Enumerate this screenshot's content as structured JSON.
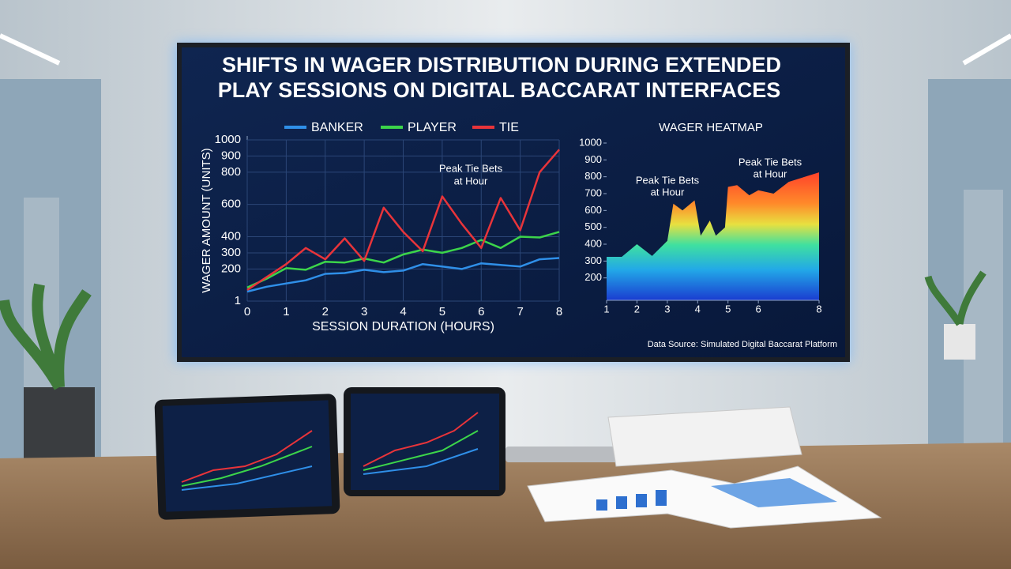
{
  "title": [
    "SHIFTS IN WAGER DISTRIBUTION DURING EXTENDED",
    "PLAY SESSIONS ON DIGITAL BACCARAT INTERFACES"
  ],
  "source": "Data Source: Simulated Digital Baccarat Platform",
  "chart_data": [
    {
      "type": "line",
      "x": [
        0,
        0.5,
        1,
        1.5,
        2,
        2.5,
        3,
        3.5,
        4,
        4.5,
        5,
        5.5,
        6,
        6.5,
        7,
        7.5,
        8
      ],
      "series": [
        {
          "name": "BANKER",
          "color": "#2f8fe8",
          "values": [
            60,
            90,
            110,
            130,
            170,
            175,
            195,
            180,
            190,
            230,
            215,
            200,
            235,
            225,
            215,
            260,
            268
          ]
        },
        {
          "name": "PLAYER",
          "color": "#3cd44a",
          "values": [
            85,
            140,
            205,
            195,
            245,
            240,
            265,
            240,
            290,
            320,
            300,
            330,
            380,
            330,
            400,
            395,
            430
          ]
        },
        {
          "name": "TIE",
          "color": "#e8343a",
          "values": [
            70,
            150,
            230,
            330,
            260,
            390,
            250,
            580,
            430,
            310,
            650,
            480,
            330,
            640,
            440,
            800,
            940
          ]
        }
      ],
      "xlim": [
        0,
        8
      ],
      "xticks": [
        0,
        1,
        2,
        3,
        4,
        5,
        6,
        7,
        8
      ],
      "ylim": [
        1,
        1000
      ],
      "yticks": [
        1,
        200,
        300,
        400,
        600,
        800,
        900,
        1000
      ],
      "x_label": "SESSION DURATION (HOURS)",
      "y_label": "WAGER AMOUNT (UNITS)",
      "legend": "top",
      "annotation": [
        "Peak Tie Bets",
        "at Hour"
      ]
    },
    {
      "type": "area",
      "title": "WAGER HEATMAP",
      "x": [
        1,
        1.5,
        2,
        2.5,
        3,
        3.2,
        3.5,
        3.9,
        4.1,
        4.4,
        4.6,
        4.9,
        5,
        5.3,
        5.7,
        6,
        6.5,
        7,
        8
      ],
      "values": [
        325,
        325,
        400,
        330,
        420,
        640,
        600,
        660,
        450,
        540,
        450,
        500,
        740,
        750,
        690,
        720,
        700,
        770,
        826
      ],
      "xlim": [
        1,
        8
      ],
      "xticks": [
        1,
        2,
        3,
        4,
        5,
        6,
        8
      ],
      "ylim": [
        100,
        1000
      ],
      "yticks": [
        200,
        300,
        400,
        500,
        600,
        700,
        800,
        900,
        1000
      ],
      "annotations": [
        [
          "Peak Tie Bets",
          "at Hour"
        ],
        [
          "Peak Tie Bets",
          "at Hour"
        ]
      ]
    }
  ]
}
